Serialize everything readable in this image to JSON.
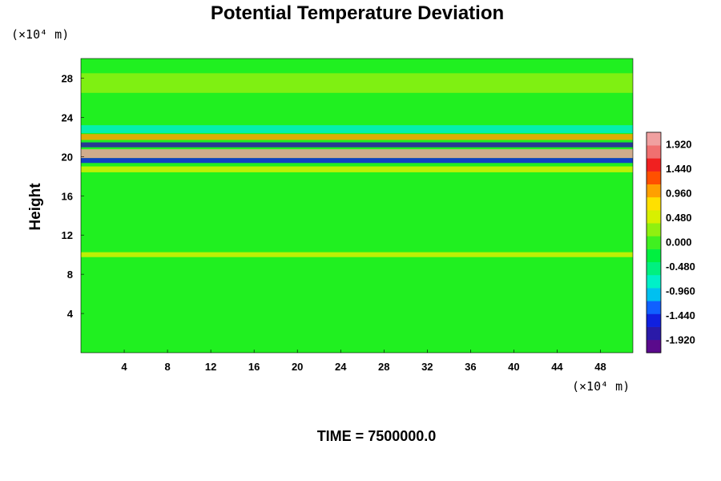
{
  "chart_data": {
    "type": "heatmap",
    "title": "Potential Temperature Deviation",
    "ylabel": "Height",
    "y_unit": "(×10⁴ m)",
    "x_unit": "(×10⁴ m)",
    "footer": "TIME = 7500000.0",
    "x_ticks": [
      "4",
      "8",
      "12",
      "16",
      "20",
      "24",
      "28",
      "32",
      "36",
      "40",
      "44",
      "48"
    ],
    "y_ticks": [
      "4",
      "8",
      "12",
      "16",
      "20",
      "24",
      "28"
    ],
    "xlim": [
      0,
      51
    ],
    "ylim": [
      0,
      30
    ],
    "colorbar": {
      "ticks": [
        "1.920",
        "1.440",
        "0.960",
        "0.480",
        "0.000",
        "-0.480",
        "-0.960",
        "-1.440",
        "-1.920"
      ],
      "range": [
        -2.16,
        2.16
      ],
      "colors": [
        "#5a0a8c",
        "#2a1aa8",
        "#1020e0",
        "#1060ff",
        "#00c0f0",
        "#00f0c8",
        "#00f080",
        "#00f040",
        "#40f020",
        "#90f010",
        "#d8f000",
        "#ffe000",
        "#ffa000",
        "#ff5000",
        "#f02020",
        "#f07070",
        "#f0a0a0"
      ]
    },
    "background_value": 0.0,
    "bands": [
      {
        "y": 20.3,
        "width": 0.9,
        "value": 2.0
      },
      {
        "y": 21.2,
        "width": 0.5,
        "value": -1.7
      },
      {
        "y": 19.6,
        "width": 0.5,
        "value": -1.5
      },
      {
        "y": 22.0,
        "width": 0.6,
        "value": 0.9
      },
      {
        "y": 18.7,
        "width": 0.6,
        "value": 0.5
      },
      {
        "y": 22.8,
        "width": 0.8,
        "value": -0.7
      },
      {
        "y": 27.5,
        "width": 2.0,
        "value": 0.25
      },
      {
        "y": 10.0,
        "width": 0.5,
        "value": 0.6
      }
    ]
  }
}
